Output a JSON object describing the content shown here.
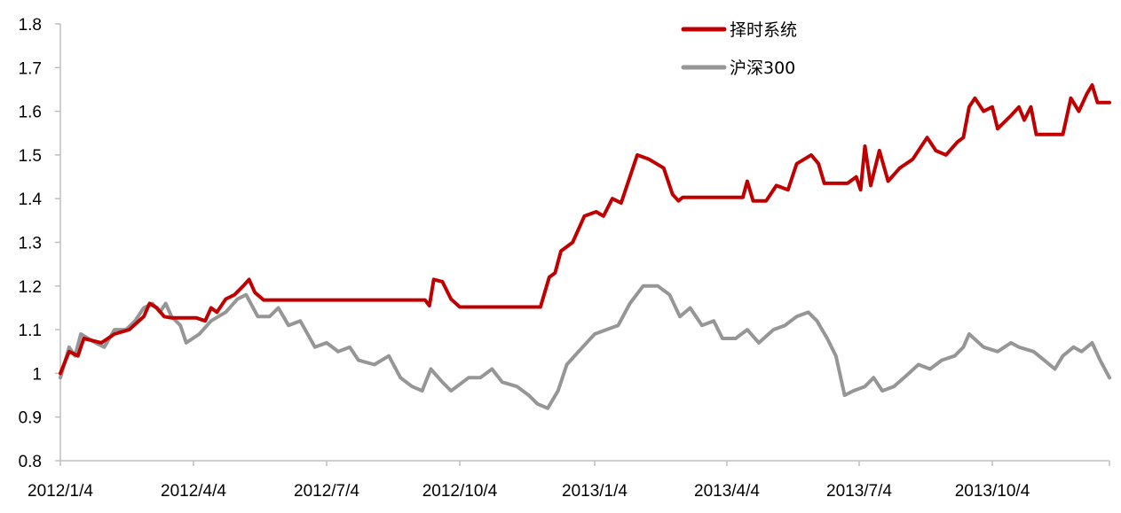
{
  "chart_data": {
    "type": "line",
    "title": "",
    "xlabel": "",
    "ylabel": "",
    "ylim": [
      0.8,
      1.8
    ],
    "yticks": [
      "0.8",
      "0.9",
      "1",
      "1.1",
      "1.2",
      "1.3",
      "1.4",
      "1.5",
      "1.6",
      "1.7",
      "1.8"
    ],
    "xticks": [
      "2012/1/4",
      "2012/4/4",
      "2012/7/4",
      "2012/10/4",
      "2013/1/4",
      "2013/4/4",
      "2013/7/4",
      "2013/10/4"
    ],
    "xlim": [
      "2012-01-04",
      "2013-12-31"
    ],
    "grid": false,
    "legend_position": "top-right",
    "series": [
      {
        "name": "择时系统",
        "color": "#c00000",
        "points": [
          [
            "2012-01-04",
            1.0
          ],
          [
            "2012-01-10",
            1.05
          ],
          [
            "2012-01-16",
            1.04
          ],
          [
            "2012-01-20",
            1.08
          ],
          [
            "2012-02-01",
            1.07
          ],
          [
            "2012-02-10",
            1.09
          ],
          [
            "2012-02-20",
            1.1
          ],
          [
            "2012-03-01",
            1.13
          ],
          [
            "2012-03-05",
            1.16
          ],
          [
            "2012-03-10",
            1.15
          ],
          [
            "2012-03-15",
            1.13
          ],
          [
            "2012-03-20",
            1.127
          ],
          [
            "2012-04-06",
            1.127
          ],
          [
            "2012-04-12",
            1.12
          ],
          [
            "2012-04-16",
            1.15
          ],
          [
            "2012-04-20",
            1.14
          ],
          [
            "2012-04-26",
            1.17
          ],
          [
            "2012-05-02",
            1.18
          ],
          [
            "2012-05-08",
            1.2
          ],
          [
            "2012-05-12",
            1.215
          ],
          [
            "2012-05-16",
            1.185
          ],
          [
            "2012-05-22",
            1.168
          ],
          [
            "2012-09-10",
            1.168
          ],
          [
            "2012-09-13",
            1.155
          ],
          [
            "2012-09-16",
            1.215
          ],
          [
            "2012-09-22",
            1.21
          ],
          [
            "2012-09-28",
            1.17
          ],
          [
            "2012-10-04",
            1.152
          ],
          [
            "2012-11-28",
            1.152
          ],
          [
            "2012-12-04",
            1.22
          ],
          [
            "2012-12-08",
            1.23
          ],
          [
            "2012-12-12",
            1.28
          ],
          [
            "2012-12-20",
            1.3
          ],
          [
            "2012-12-28",
            1.36
          ],
          [
            "2013-01-05",
            1.37
          ],
          [
            "2013-01-10",
            1.36
          ],
          [
            "2013-01-16",
            1.4
          ],
          [
            "2013-01-22",
            1.39
          ],
          [
            "2013-01-28",
            1.45
          ],
          [
            "2013-02-02",
            1.5
          ],
          [
            "2013-02-10",
            1.49
          ],
          [
            "2013-02-20",
            1.47
          ],
          [
            "2013-02-26",
            1.41
          ],
          [
            "2013-03-02",
            1.395
          ],
          [
            "2013-03-05",
            1.403
          ],
          [
            "2013-04-15",
            1.403
          ],
          [
            "2013-04-18",
            1.44
          ],
          [
            "2013-04-22",
            1.395
          ],
          [
            "2013-05-01",
            1.395
          ],
          [
            "2013-05-08",
            1.43
          ],
          [
            "2013-05-16",
            1.42
          ],
          [
            "2013-05-22",
            1.48
          ],
          [
            "2013-06-01",
            1.5
          ],
          [
            "2013-06-06",
            1.48
          ],
          [
            "2013-06-10",
            1.435
          ],
          [
            "2013-06-26",
            1.435
          ],
          [
            "2013-07-02",
            1.45
          ],
          [
            "2013-07-05",
            1.42
          ],
          [
            "2013-07-08",
            1.52
          ],
          [
            "2013-07-12",
            1.43
          ],
          [
            "2013-07-18",
            1.51
          ],
          [
            "2013-07-24",
            1.44
          ],
          [
            "2013-08-01",
            1.47
          ],
          [
            "2013-08-10",
            1.49
          ],
          [
            "2013-08-20",
            1.54
          ],
          [
            "2013-08-26",
            1.51
          ],
          [
            "2013-09-02",
            1.5
          ],
          [
            "2013-09-10",
            1.53
          ],
          [
            "2013-09-14",
            1.54
          ],
          [
            "2013-09-18",
            1.61
          ],
          [
            "2013-09-22",
            1.63
          ],
          [
            "2013-09-28",
            1.6
          ],
          [
            "2013-10-04",
            1.61
          ],
          [
            "2013-10-08",
            1.56
          ],
          [
            "2013-10-18",
            1.59
          ],
          [
            "2013-10-24",
            1.61
          ],
          [
            "2013-10-28",
            1.58
          ],
          [
            "2013-11-02",
            1.61
          ],
          [
            "2013-11-06",
            1.547
          ],
          [
            "2013-11-26",
            1.547
          ],
          [
            "2013-12-02",
            1.63
          ],
          [
            "2013-12-08",
            1.6
          ],
          [
            "2013-12-14",
            1.64
          ],
          [
            "2013-12-18",
            1.66
          ],
          [
            "2013-12-22",
            1.62
          ],
          [
            "2013-12-31",
            1.62
          ]
        ]
      },
      {
        "name": "沪深300",
        "color": "#969696",
        "points": [
          [
            "2012-01-04",
            0.99
          ],
          [
            "2012-01-10",
            1.06
          ],
          [
            "2012-01-14",
            1.04
          ],
          [
            "2012-01-18",
            1.09
          ],
          [
            "2012-01-28",
            1.07
          ],
          [
            "2012-02-03",
            1.06
          ],
          [
            "2012-02-10",
            1.1
          ],
          [
            "2012-02-18",
            1.1
          ],
          [
            "2012-02-24",
            1.12
          ],
          [
            "2012-03-01",
            1.15
          ],
          [
            "2012-03-07",
            1.16
          ],
          [
            "2012-03-12",
            1.14
          ],
          [
            "2012-03-16",
            1.16
          ],
          [
            "2012-03-20",
            1.13
          ],
          [
            "2012-03-26",
            1.11
          ],
          [
            "2012-03-30",
            1.07
          ],
          [
            "2012-04-08",
            1.09
          ],
          [
            "2012-04-16",
            1.12
          ],
          [
            "2012-04-26",
            1.14
          ],
          [
            "2012-05-04",
            1.17
          ],
          [
            "2012-05-10",
            1.18
          ],
          [
            "2012-05-18",
            1.13
          ],
          [
            "2012-05-26",
            1.13
          ],
          [
            "2012-06-01",
            1.15
          ],
          [
            "2012-06-08",
            1.11
          ],
          [
            "2012-06-16",
            1.12
          ],
          [
            "2012-06-26",
            1.06
          ],
          [
            "2012-07-04",
            1.07
          ],
          [
            "2012-07-12",
            1.05
          ],
          [
            "2012-07-20",
            1.06
          ],
          [
            "2012-07-26",
            1.03
          ],
          [
            "2012-08-06",
            1.02
          ],
          [
            "2012-08-16",
            1.04
          ],
          [
            "2012-08-24",
            0.99
          ],
          [
            "2012-09-01",
            0.97
          ],
          [
            "2012-09-08",
            0.96
          ],
          [
            "2012-09-14",
            1.01
          ],
          [
            "2012-09-22",
            0.98
          ],
          [
            "2012-09-28",
            0.96
          ],
          [
            "2012-10-10",
            0.99
          ],
          [
            "2012-10-18",
            0.99
          ],
          [
            "2012-10-26",
            1.01
          ],
          [
            "2012-11-02",
            0.98
          ],
          [
            "2012-11-12",
            0.97
          ],
          [
            "2012-11-20",
            0.95
          ],
          [
            "2012-11-26",
            0.93
          ],
          [
            "2012-12-03",
            0.92
          ],
          [
            "2012-12-10",
            0.96
          ],
          [
            "2012-12-16",
            1.02
          ],
          [
            "2012-12-24",
            1.05
          ],
          [
            "2013-01-04",
            1.09
          ],
          [
            "2013-01-12",
            1.1
          ],
          [
            "2013-01-20",
            1.11
          ],
          [
            "2013-01-28",
            1.16
          ],
          [
            "2013-02-06",
            1.2
          ],
          [
            "2013-02-16",
            1.2
          ],
          [
            "2013-02-24",
            1.18
          ],
          [
            "2013-03-03",
            1.13
          ],
          [
            "2013-03-10",
            1.15
          ],
          [
            "2013-03-18",
            1.11
          ],
          [
            "2013-03-26",
            1.12
          ],
          [
            "2013-04-01",
            1.08
          ],
          [
            "2013-04-10",
            1.08
          ],
          [
            "2013-04-18",
            1.1
          ],
          [
            "2013-04-26",
            1.07
          ],
          [
            "2013-05-06",
            1.1
          ],
          [
            "2013-05-14",
            1.11
          ],
          [
            "2013-05-22",
            1.13
          ],
          [
            "2013-05-30",
            1.14
          ],
          [
            "2013-06-05",
            1.12
          ],
          [
            "2013-06-12",
            1.08
          ],
          [
            "2013-06-18",
            1.04
          ],
          [
            "2013-06-24",
            0.95
          ],
          [
            "2013-06-30",
            0.96
          ],
          [
            "2013-07-08",
            0.97
          ],
          [
            "2013-07-14",
            0.99
          ],
          [
            "2013-07-20",
            0.96
          ],
          [
            "2013-07-28",
            0.97
          ],
          [
            "2013-08-04",
            0.99
          ],
          [
            "2013-08-14",
            1.02
          ],
          [
            "2013-08-22",
            1.01
          ],
          [
            "2013-08-30",
            1.03
          ],
          [
            "2013-09-08",
            1.04
          ],
          [
            "2013-09-14",
            1.06
          ],
          [
            "2013-09-18",
            1.09
          ],
          [
            "2013-09-28",
            1.06
          ],
          [
            "2013-10-08",
            1.05
          ],
          [
            "2013-10-18",
            1.07
          ],
          [
            "2013-10-24",
            1.06
          ],
          [
            "2013-11-04",
            1.05
          ],
          [
            "2013-11-12",
            1.03
          ],
          [
            "2013-11-20",
            1.01
          ],
          [
            "2013-11-26",
            1.04
          ],
          [
            "2013-12-04",
            1.06
          ],
          [
            "2013-12-10",
            1.05
          ],
          [
            "2013-12-18",
            1.07
          ],
          [
            "2013-12-24",
            1.03
          ],
          [
            "2013-12-31",
            0.99
          ]
        ]
      }
    ]
  }
}
